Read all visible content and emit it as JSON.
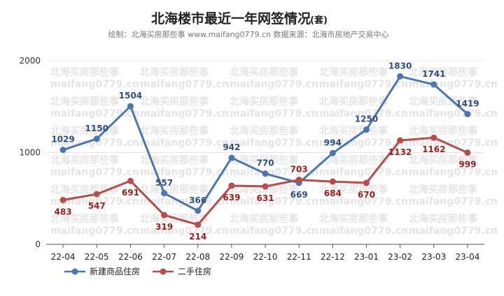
{
  "chart_data": {
    "type": "line",
    "title": "北海楼市最近一年网签情况",
    "title_suffix": "(套)",
    "subtitle": "绘制：北海买房那些事 www.maifang0779.cn  数据来源：北海市房地产交易中心",
    "watermark": {
      "line1": "北海买房那些事",
      "line2": "maifang0779.cn"
    },
    "categories": [
      "22-04",
      "22-05",
      "22-06",
      "22-07",
      "22-08",
      "22-09",
      "22-10",
      "22-11",
      "22-12",
      "23-01",
      "23-02",
      "23-03",
      "23-04"
    ],
    "ylim": [
      0,
      2000
    ],
    "yticks": [
      0,
      1000,
      2000
    ],
    "grid": true,
    "legend_position": "bottom-left",
    "series": [
      {
        "name": "新建商品住房",
        "color": "#4a76b3",
        "label_color": "#2e4f7d",
        "values": [
          1029,
          1150,
          1504,
          557,
          366,
          942,
          770,
          669,
          994,
          1250,
          1830,
          1741,
          1419
        ]
      },
      {
        "name": "二手住房",
        "color": "#b94b4b",
        "label_color": "#a01e1e",
        "values": [
          483,
          547,
          691,
          319,
          214,
          639,
          631,
          703,
          684,
          670,
          1132,
          1162,
          999
        ]
      }
    ]
  }
}
